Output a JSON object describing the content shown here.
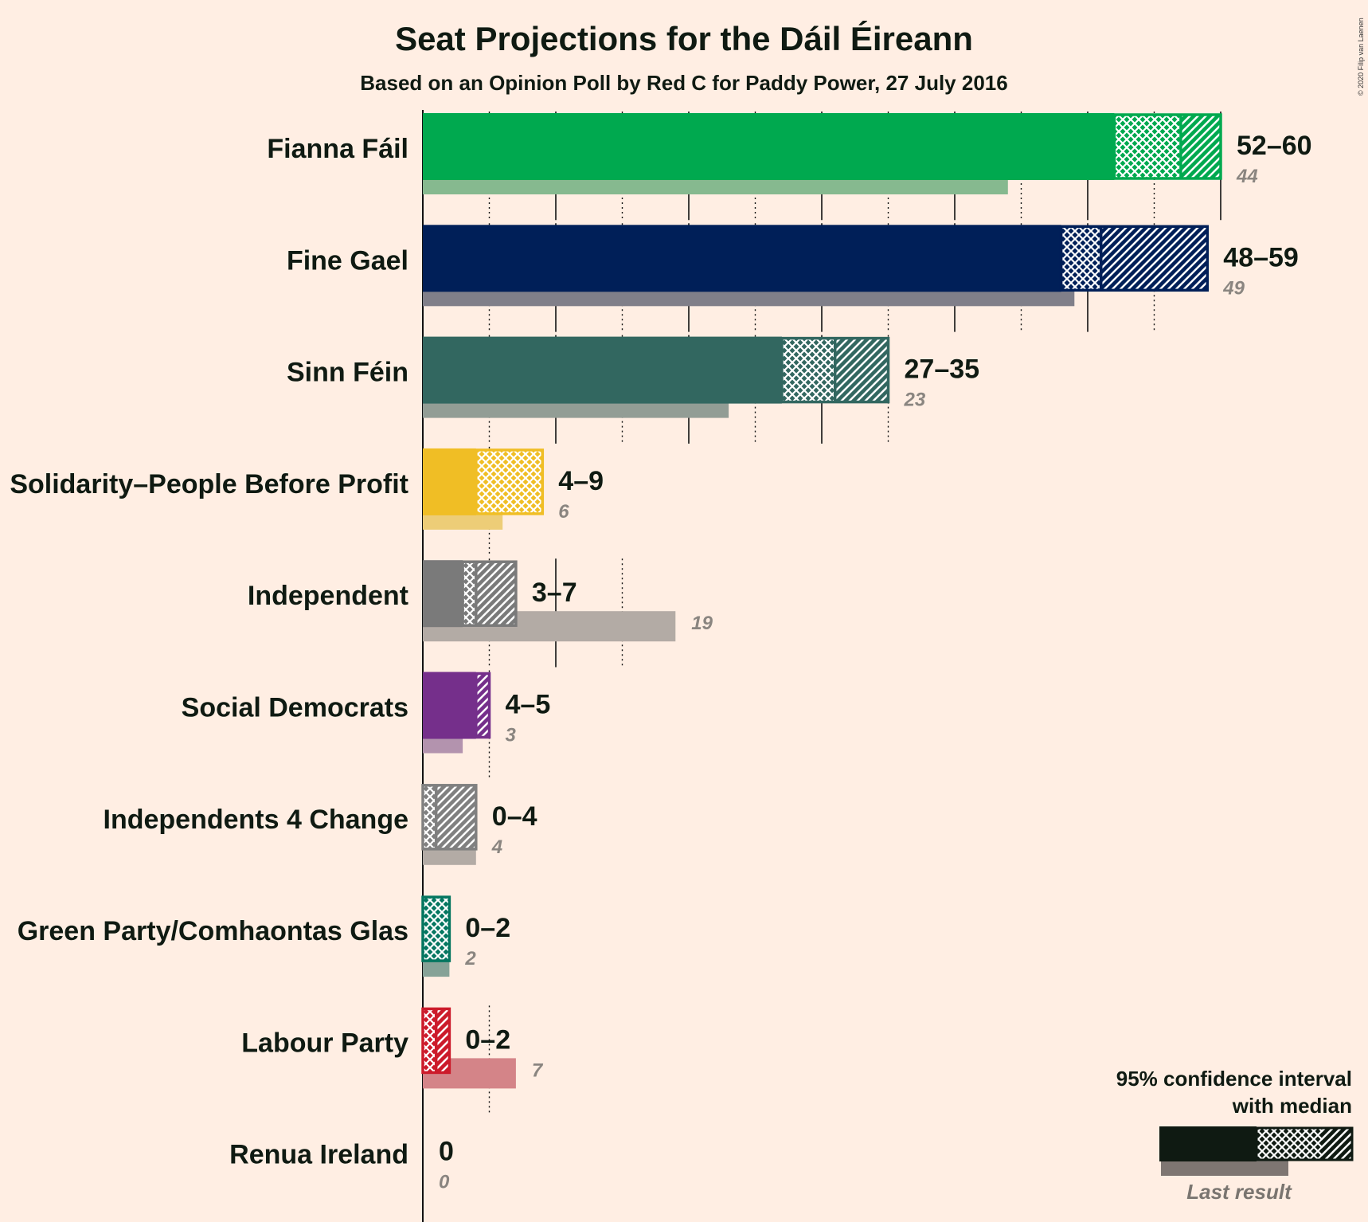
{
  "title": "Seat Projections for the Dáil Éireann",
  "subtitle": "Based on an Opinion Poll by Red C for Paddy Power, 27 July 2016",
  "copyright": "© 2020 Filip van Laenen",
  "legend": {
    "title_line1": "95% confidence interval",
    "title_line2": "with median",
    "last_result": "Last result"
  },
  "chart_data": {
    "type": "bar",
    "orientation": "horizontal",
    "xlim": [
      0,
      60
    ],
    "grid": true,
    "legend_position": "bottom-right",
    "categories": [
      "Fianna Fáil",
      "Fine Gael",
      "Sinn Féin",
      "Solidarity–People Before Profit",
      "Independent",
      "Social Democrats",
      "Independents 4 Change",
      "Green Party/Comhaontas Glas",
      "Labour Party",
      "Renua Ireland"
    ],
    "series": [
      {
        "name": "95% confidence interval with median",
        "values": [
          {
            "low": 52,
            "median": 57,
            "high": 60,
            "label": "52–60"
          },
          {
            "low": 48,
            "median": 51,
            "high": 59,
            "label": "48–59"
          },
          {
            "low": 27,
            "median": 31,
            "high": 35,
            "label": "27–35"
          },
          {
            "low": 4,
            "median": 9,
            "high": 9,
            "label": "4–9"
          },
          {
            "low": 3,
            "median": 4,
            "high": 7,
            "label": "3–7"
          },
          {
            "low": 4,
            "median": 4,
            "high": 5,
            "label": "4–5"
          },
          {
            "low": 0,
            "median": 1,
            "high": 4,
            "label": "0–4"
          },
          {
            "low": 0,
            "median": 2,
            "high": 2,
            "label": "0–2"
          },
          {
            "low": 0,
            "median": 1,
            "high": 2,
            "label": "0–2"
          },
          {
            "low": 0,
            "median": 0,
            "high": 0,
            "label": "0"
          }
        ]
      },
      {
        "name": "Last result",
        "values": [
          {
            "value": 44,
            "label": "44"
          },
          {
            "value": 49,
            "label": "49"
          },
          {
            "value": 23,
            "label": "23"
          },
          {
            "value": 6,
            "label": "6"
          },
          {
            "value": 19,
            "label": "19"
          },
          {
            "value": 3,
            "label": "3"
          },
          {
            "value": 4,
            "label": "4"
          },
          {
            "value": 2,
            "label": "2"
          },
          {
            "value": 7,
            "label": "7"
          },
          {
            "value": 0,
            "label": "0"
          }
        ]
      }
    ],
    "colors": [
      "#00A94F",
      "#001F58",
      "#326760",
      "#F0BE25",
      "#7A7A7A",
      "#752F8B",
      "#808080",
      "#047660",
      "#CC1B2B",
      "#5A5A5A"
    ],
    "last_colors": [
      "#86B98F",
      "#807F89",
      "#929D95",
      "#EDCD77",
      "#B3ABA5",
      "#B393AE",
      "#B3ABA5",
      "#86A297",
      "#D48488",
      "#B3ABA5"
    ]
  }
}
